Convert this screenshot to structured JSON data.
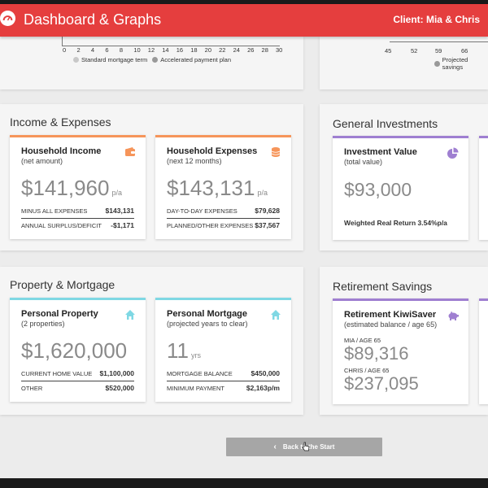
{
  "header": {
    "title": "Dashboard & Graphs",
    "client": "Client: Mia & Chris"
  },
  "mortgage_chart": {
    "ticks": [
      "0",
      "2",
      "4",
      "6",
      "8",
      "10",
      "12",
      "14",
      "16",
      "18",
      "20",
      "22",
      "24",
      "26",
      "28",
      "30"
    ],
    "legend": [
      "Standard mortgage term",
      "Accelerated payment plan"
    ],
    "legend_colors": [
      "#c8c8c8",
      "#999999"
    ]
  },
  "savings_chart": {
    "ticks": [
      "45",
      "52",
      "59",
      "66"
    ],
    "legend": [
      "Projected savings"
    ]
  },
  "income": {
    "title": "Income & Expenses",
    "household_income": {
      "title": "Household Income",
      "sub": "(net amount)",
      "value": "$141,960",
      "unit": "p/a",
      "rows": [
        {
          "label": "MINUS ALL EXPENSES",
          "value": "$143,131"
        },
        {
          "label": "ANNUAL SURPLUS/DEFICIT",
          "value": "-$1,171"
        }
      ]
    },
    "household_expenses": {
      "title": "Household Expenses",
      "sub": "(next 12 months)",
      "value": "$143,131",
      "unit": "p/a",
      "rows": [
        {
          "label": "DAY-TO-DAY EXPENSES",
          "value": "$79,628"
        },
        {
          "label": "PLANNED/OTHER EXPENSES",
          "value": "$37,567"
        }
      ]
    }
  },
  "investments": {
    "title": "General Investments",
    "card": {
      "title": "Investment Value",
      "sub": "(total value)",
      "value": "$93,000",
      "note": "Weighted Real Return 3.54%p/a"
    }
  },
  "property": {
    "title": "Property & Mortgage",
    "personal_property": {
      "title": "Personal Property",
      "sub": "(2 properties)",
      "value": "$1,620,000",
      "rows": [
        {
          "label": "CURRENT HOME VALUE",
          "value": "$1,100,000"
        },
        {
          "label": "OTHER",
          "value": "$520,000"
        }
      ]
    },
    "personal_mortgage": {
      "title": "Personal Mortgage",
      "sub": "(projected years to clear)",
      "value": "11",
      "unit": "yrs",
      "rows": [
        {
          "label": "MORTGAGE BALANCE",
          "value": "$450,000"
        },
        {
          "label": "MINIMUM PAYMENT",
          "value": "$2,163p/m"
        }
      ]
    }
  },
  "retirement": {
    "title": "Retirement Savings",
    "card": {
      "title": "Retirement KiwiSaver",
      "sub": "(estimated balance / age 65)",
      "mia_label": "MIA / AGE 65",
      "mia_value": "$89,316",
      "chris_label": "CHRIS / AGE 65",
      "chris_value": "$237,095"
    }
  },
  "footer": {
    "back_label": "Back to the Start"
  },
  "colors": {
    "header": "#e53e3e",
    "accent_orange": "#f6955a",
    "accent_purple": "#9f7fd1",
    "accent_cyan": "#7fd8e4",
    "button": "#a6a6a6"
  }
}
